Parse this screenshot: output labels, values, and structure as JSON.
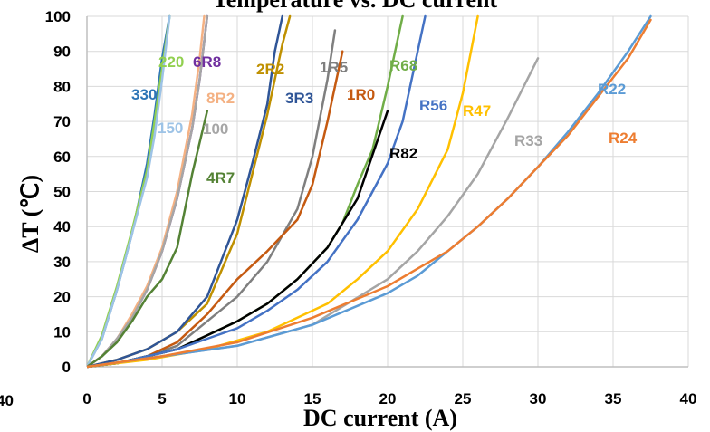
{
  "chart_data": {
    "type": "line",
    "title": "Temperature vs. DC current",
    "xlabel": "DC current (A)",
    "ylabel": "ΔT (℃)",
    "xlim": [
      0,
      40
    ],
    "ylim": [
      0,
      100
    ],
    "xticks": [
      "0",
      "5",
      "10",
      "15",
      "20",
      "25",
      "30",
      "35",
      "40"
    ],
    "yticks": [
      "0",
      "10",
      "20",
      "30",
      "40",
      "50",
      "60",
      "70",
      "80",
      "90",
      "100"
    ],
    "grid": true,
    "legend": "labels placed next to each curve",
    "left_edge_tick": "40",
    "series": [
      {
        "name": "330",
        "color": "#2E75B6",
        "x": [
          0,
          1,
          2,
          3,
          4,
          4.5,
          5,
          5.5
        ],
        "y": [
          0,
          8,
          22,
          38,
          58,
          72,
          88,
          100
        ]
      },
      {
        "name": "220",
        "color": "#92D050",
        "x": [
          0,
          1,
          2,
          3,
          4,
          4.5,
          5,
          5.5
        ],
        "y": [
          0,
          9,
          23,
          39,
          56,
          70,
          85,
          100
        ]
      },
      {
        "name": "150",
        "color": "#9DC3E6",
        "x": [
          0,
          1,
          2,
          3,
          4,
          4.5,
          5,
          5.5
        ],
        "y": [
          0,
          8,
          22,
          38,
          54,
          66,
          82,
          100
        ]
      },
      {
        "name": "6R8",
        "color": "#7030A0",
        "x": [
          0,
          1,
          2,
          3,
          4,
          5,
          6,
          7,
          7.5,
          8
        ],
        "y": [
          0,
          3,
          8,
          14,
          22,
          33,
          48,
          68,
          82,
          100
        ]
      },
      {
        "name": "8R2",
        "color": "#F4B183",
        "x": [
          0,
          1,
          2,
          3,
          4,
          5,
          6,
          7,
          7.5,
          7.8
        ],
        "y": [
          0,
          3,
          8,
          15,
          23,
          34,
          50,
          72,
          88,
          100
        ]
      },
      {
        "name": "100",
        "color": "#A6A6A6",
        "x": [
          0,
          1,
          2,
          3,
          4,
          5,
          6,
          7,
          7.5,
          8
        ],
        "y": [
          0,
          3,
          8,
          14,
          22,
          33,
          48,
          68,
          82,
          100
        ]
      },
      {
        "name": "4R7",
        "color": "#548235",
        "x": [
          0,
          1,
          2,
          3,
          4,
          5,
          6,
          7,
          8
        ],
        "y": [
          0,
          3,
          7,
          13,
          20,
          25,
          34,
          55,
          73
        ]
      },
      {
        "name": "2R2",
        "color": "#BF9000",
        "x": [
          0,
          2,
          4,
          6,
          8,
          10,
          11,
          12,
          13,
          13.5
        ],
        "y": [
          0,
          2,
          5,
          10,
          18,
          38,
          55,
          72,
          92,
          100
        ]
      },
      {
        "name": "3R3",
        "color": "#2F5597",
        "x": [
          0,
          2,
          4,
          6,
          8,
          10,
          11,
          12,
          12.5,
          13
        ],
        "y": [
          0,
          2,
          5,
          10,
          20,
          42,
          58,
          75,
          90,
          100
        ]
      },
      {
        "name": "1R5",
        "color": "#7F7F7F",
        "x": [
          0,
          2,
          4,
          6,
          8,
          10,
          12,
          14,
          15,
          16,
          16.5
        ],
        "y": [
          0,
          1,
          3,
          6,
          13,
          20,
          30,
          45,
          60,
          82,
          96
        ]
      },
      {
        "name": "1R0",
        "color": "#C55A11",
        "x": [
          0,
          2,
          4,
          6,
          8,
          10,
          12,
          14,
          15,
          16,
          17
        ],
        "y": [
          0,
          1,
          3,
          7,
          15,
          25,
          33,
          42,
          52,
          70,
          90
        ]
      },
      {
        "name": "R68",
        "color": "#70AD47",
        "x": [
          0,
          2,
          4,
          6,
          8,
          10,
          12,
          14,
          16,
          17,
          18,
          19,
          20,
          21
        ],
        "y": [
          0,
          1,
          3,
          5,
          9,
          13,
          18,
          25,
          34,
          41,
          52,
          62,
          80,
          100
        ]
      },
      {
        "name": "R82",
        "color": "#000000",
        "x": [
          0,
          2,
          4,
          6,
          8,
          10,
          12,
          14,
          16,
          18,
          20
        ],
        "y": [
          0,
          1,
          3,
          5,
          9,
          13,
          18,
          25,
          34,
          48,
          73
        ]
      },
      {
        "name": "R56",
        "color": "#4472C4",
        "x": [
          0,
          2,
          4,
          6,
          8,
          10,
          12,
          14,
          16,
          18,
          20,
          21,
          22,
          22.5
        ],
        "y": [
          0,
          1,
          3,
          5,
          8,
          11,
          16,
          22,
          30,
          42,
          58,
          70,
          90,
          100
        ]
      },
      {
        "name": "R47",
        "color": "#FFC000",
        "x": [
          0,
          4,
          8,
          12,
          16,
          18,
          20,
          22,
          24,
          25,
          26
        ],
        "y": [
          0,
          2,
          5,
          10,
          18,
          25,
          33,
          45,
          62,
          78,
          100
        ]
      },
      {
        "name": "R33",
        "color": "#A5A5A5",
        "x": [
          0,
          5,
          10,
          15,
          20,
          22,
          24,
          26,
          28,
          30
        ],
        "y": [
          0,
          3,
          6,
          12,
          25,
          33,
          43,
          55,
          71,
          88
        ]
      },
      {
        "name": "R22",
        "color": "#5B9BD5",
        "x": [
          0,
          5,
          10,
          15,
          20,
          22,
          24,
          26,
          28,
          30,
          32,
          34,
          36,
          37.5
        ],
        "y": [
          0,
          3,
          6,
          12,
          21,
          26,
          33,
          40,
          48,
          57,
          67,
          78,
          90,
          100
        ]
      },
      {
        "name": "R24",
        "color": "#ED7D31",
        "x": [
          0,
          5,
          10,
          15,
          20,
          22,
          24,
          26,
          28,
          30,
          32,
          34,
          36,
          37.5
        ],
        "y": [
          0,
          3,
          7,
          14,
          23,
          28,
          33,
          40,
          48,
          57,
          66,
          77,
          88,
          99
        ]
      }
    ]
  }
}
